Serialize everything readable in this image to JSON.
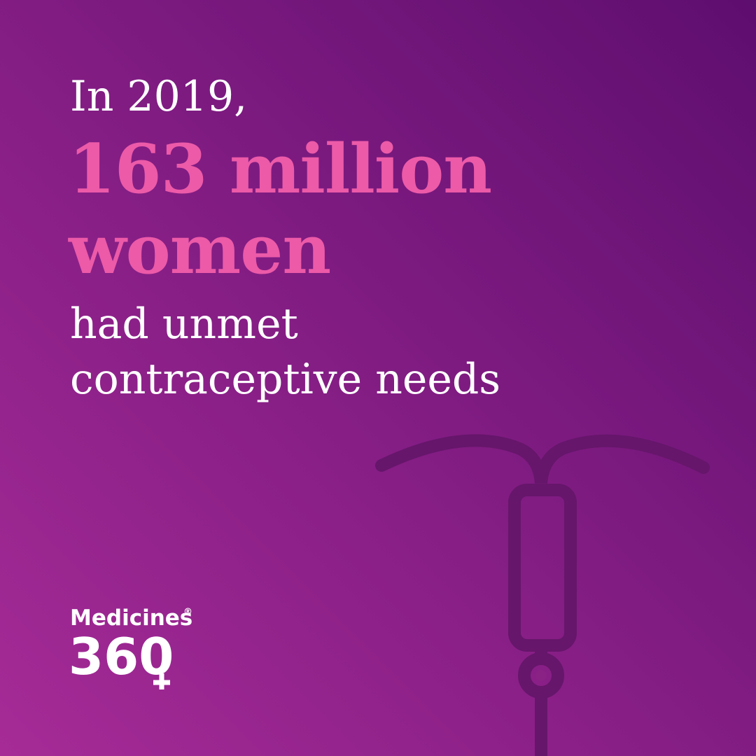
{
  "headline": {
    "intro": "In 2019,",
    "highlight": [
      "163 million",
      "women"
    ],
    "rest": [
      "had unmet",
      "contraceptive needs"
    ]
  },
  "logo": {
    "name": "Medicines",
    "mark": "®",
    "number": "360"
  }
}
